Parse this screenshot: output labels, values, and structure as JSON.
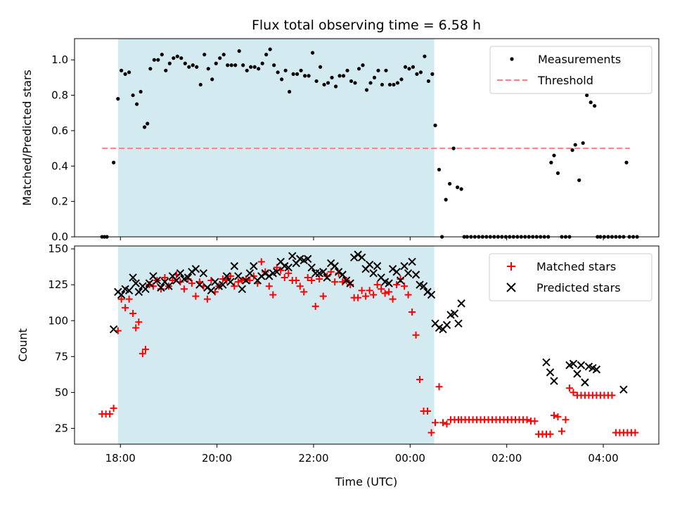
{
  "chart_data": {
    "title": "Flux total observing time = 6.58 h",
    "xlabel": "Time (UTC)",
    "x_unit": "hours since 18:00 UTC on the first night",
    "xlim": [
      -0.95,
      11.15
    ],
    "xticks": [
      {
        "value": 0,
        "label": "18:00"
      },
      {
        "value": 2,
        "label": "20:00"
      },
      {
        "value": 4,
        "label": "22:00"
      },
      {
        "value": 6,
        "label": "00:00"
      },
      {
        "value": 8,
        "label": "02:00"
      },
      {
        "value": 10,
        "label": "04:00"
      }
    ],
    "shaded_interval": [
      -0.05,
      6.5
    ],
    "shaded_color": "#d3eaf1",
    "panels": [
      {
        "id": "ratio",
        "type": "scatter",
        "ylabel": "Matched/Predicted stars",
        "ylim": [
          0,
          1.12
        ],
        "yticks": [
          "0.0",
          "0.2",
          "0.4",
          "0.6",
          "0.8",
          "1.0"
        ],
        "legend_position": "upper right",
        "threshold": {
          "name": "Threshold",
          "value": 0.5,
          "x_range": [
            -0.38,
            10.55
          ],
          "color": "#ff7f7f"
        },
        "series": [
          {
            "name": "Measurements",
            "color": "#000000",
            "marker": "dot",
            "x": [
              -0.38,
              -0.33,
              -0.28,
              -0.14,
              -0.05,
              0.02,
              0.1,
              0.18,
              0.26,
              0.34,
              0.42,
              0.5,
              0.56,
              0.62,
              0.7,
              0.78,
              0.86,
              0.94,
              1.02,
              1.1,
              1.18,
              1.26,
              1.34,
              1.42,
              1.5,
              1.58,
              1.66,
              1.74,
              1.82,
              1.9,
              1.98,
              2.06,
              2.14,
              2.22,
              2.3,
              2.38,
              2.46,
              2.54,
              2.62,
              2.7,
              2.78,
              2.86,
              2.94,
              3.02,
              3.1,
              3.18,
              3.26,
              3.34,
              3.42,
              3.5,
              3.58,
              3.66,
              3.74,
              3.82,
              3.9,
              3.98,
              4.06,
              4.14,
              4.22,
              4.3,
              4.38,
              4.46,
              4.54,
              4.62,
              4.7,
              4.78,
              4.86,
              4.94,
              5.02,
              5.1,
              5.18,
              5.26,
              5.34,
              5.42,
              5.5,
              5.58,
              5.66,
              5.74,
              5.82,
              5.9,
              5.98,
              6.06,
              6.14,
              6.22,
              6.3,
              6.38,
              6.46,
              6.52,
              6.6,
              6.66,
              6.74,
              6.82,
              6.9,
              6.98,
              7.06,
              7.12,
              7.18,
              7.26,
              7.34,
              7.42,
              7.5,
              7.58,
              7.66,
              7.74,
              7.82,
              7.9,
              7.98,
              8.06,
              8.14,
              8.22,
              8.3,
              8.38,
              8.46,
              8.54,
              8.62,
              8.7,
              8.78,
              8.86,
              8.92,
              8.98,
              9.06,
              9.14,
              9.22,
              9.3,
              9.36,
              9.42,
              9.5,
              9.58,
              9.66,
              9.74,
              9.82,
              9.88,
              9.94,
              10.02,
              10.1,
              10.18,
              10.26,
              10.34,
              10.42,
              10.48,
              10.54,
              10.62,
              10.7
            ],
            "y": [
              0.0,
              0.0,
              0.0,
              0.42,
              0.78,
              0.94,
              0.92,
              0.93,
              0.8,
              0.75,
              0.82,
              0.62,
              0.64,
              0.95,
              1.0,
              1.0,
              1.03,
              0.94,
              0.98,
              1.01,
              1.02,
              1.01,
              0.98,
              0.96,
              0.97,
              0.96,
              0.86,
              1.03,
              0.95,
              0.89,
              0.98,
              1.01,
              1.03,
              0.97,
              0.97,
              0.97,
              1.05,
              0.97,
              0.94,
              0.96,
              0.96,
              0.95,
              0.98,
              1.03,
              1.06,
              0.97,
              0.93,
              0.89,
              0.94,
              0.82,
              0.92,
              0.92,
              0.94,
              0.91,
              0.91,
              1.04,
              0.88,
              0.96,
              0.86,
              0.87,
              0.9,
              0.85,
              0.91,
              0.91,
              0.94,
              0.88,
              0.87,
              0.95,
              0.97,
              0.83,
              0.87,
              0.9,
              0.94,
              0.86,
              0.94,
              0.86,
              0.86,
              0.87,
              0.89,
              0.96,
              0.95,
              0.96,
              0.92,
              0.93,
              1.02,
              0.88,
              0.92,
              0.63,
              0.38,
              0.0,
              0.21,
              0.3,
              0.5,
              0.28,
              0.27,
              0.0,
              0.0,
              0.0,
              0.0,
              0.0,
              0.0,
              0.0,
              0.0,
              0.0,
              0.0,
              0.0,
              0.0,
              0.0,
              0.0,
              0.0,
              0.0,
              0.0,
              0.0,
              0.0,
              0.0,
              0.0,
              0.0,
              0.0,
              0.42,
              0.46,
              0.36,
              0.0,
              0.0,
              0.0,
              0.49,
              0.52,
              0.32,
              0.53,
              0.8,
              0.76,
              0.74,
              0.0,
              0.0,
              0.0,
              0.0,
              0.0,
              0.0,
              0.0,
              0.0,
              0.42,
              0.0,
              0.0,
              0.0
            ]
          }
        ]
      },
      {
        "id": "counts",
        "type": "scatter",
        "ylabel": "Count",
        "ylim": [
          14,
          152
        ],
        "yticks": [
          "25",
          "50",
          "75",
          "100",
          "125",
          "150"
        ],
        "legend_position": "upper right",
        "series": [
          {
            "name": "Matched stars",
            "color": "#ff0000",
            "marker": "plus",
            "x": [
              -0.38,
              -0.3,
              -0.22,
              -0.14,
              -0.05,
              0.02,
              0.1,
              0.18,
              0.26,
              0.32,
              0.38,
              0.46,
              0.52,
              0.6,
              0.68,
              0.76,
              0.84,
              0.92,
              1.0,
              1.08,
              1.16,
              1.24,
              1.32,
              1.4,
              1.48,
              1.56,
              1.64,
              1.72,
              1.8,
              1.88,
              1.96,
              2.04,
              2.12,
              2.2,
              2.28,
              2.36,
              2.44,
              2.52,
              2.6,
              2.68,
              2.76,
              2.84,
              2.92,
              3.0,
              3.08,
              3.16,
              3.24,
              3.32,
              3.4,
              3.48,
              3.56,
              3.64,
              3.72,
              3.8,
              3.88,
              3.96,
              4.04,
              4.12,
              4.2,
              4.28,
              4.36,
              4.44,
              4.52,
              4.6,
              4.68,
              4.76,
              4.84,
              4.92,
              5.0,
              5.08,
              5.16,
              5.24,
              5.32,
              5.4,
              5.48,
              5.56,
              5.64,
              5.72,
              5.8,
              5.88,
              5.96,
              6.04,
              6.12,
              6.2,
              6.28,
              6.36,
              6.44,
              6.52,
              6.6,
              6.68,
              6.76,
              6.84,
              6.92,
              7.0,
              7.06,
              7.14,
              7.22,
              7.3,
              7.38,
              7.46,
              7.54,
              7.62,
              7.7,
              7.78,
              7.86,
              7.94,
              8.02,
              8.1,
              8.18,
              8.26,
              8.34,
              8.42,
              8.5,
              8.58,
              8.66,
              8.74,
              8.82,
              8.9,
              8.98,
              9.06,
              9.14,
              9.22,
              9.3,
              9.38,
              9.46,
              9.54,
              9.62,
              9.7,
              9.78,
              9.86,
              9.94,
              10.02,
              10.1,
              10.18,
              10.26,
              10.34,
              10.42,
              10.5,
              10.58,
              10.66
            ],
            "y": [
              35,
              35,
              35,
              39,
              93,
              115,
              109,
              115,
              105,
              95,
              99,
              77,
              80,
              125,
              124,
              128,
              122,
              130,
              124,
              128,
              132,
              127,
              122,
              129,
              126,
              117,
              127,
              124,
              115,
              128,
              120,
              124,
              129,
              128,
              131,
              124,
              127,
              128,
              129,
              128,
              131,
              126,
              141,
              134,
              124,
              118,
              137,
              135,
              130,
              133,
              128,
              128,
              124,
              120,
              130,
              128,
              110,
              129,
              117,
              131,
              134,
              127,
              133,
              127,
              128,
              125,
              116,
              116,
              121,
              117,
              121,
              118,
              125,
              122,
              119,
              120,
              115,
              125,
              129,
              124,
              118,
              106,
              90,
              59,
              37,
              37,
              22,
              29,
              54,
              29,
              28,
              31,
              31,
              31,
              31,
              31,
              31,
              31,
              31,
              31,
              31,
              31,
              31,
              31,
              31,
              31,
              31,
              31,
              31,
              31,
              31,
              31,
              30,
              30,
              21,
              21,
              21,
              21,
              34,
              33,
              23,
              31,
              53,
              50,
              48,
              48,
              48,
              48,
              48,
              48,
              48,
              48,
              48,
              48,
              22,
              22,
              22,
              22,
              22,
              22
            ]
          },
          {
            "name": "Predicted stars",
            "color": "#000000",
            "marker": "x",
            "x": [
              -0.14,
              -0.05,
              0.02,
              0.1,
              0.18,
              0.26,
              0.32,
              0.38,
              0.46,
              0.52,
              0.6,
              0.68,
              0.76,
              0.84,
              0.92,
              1.0,
              1.08,
              1.16,
              1.24,
              1.32,
              1.4,
              1.48,
              1.56,
              1.64,
              1.72,
              1.8,
              1.88,
              1.96,
              2.04,
              2.12,
              2.2,
              2.28,
              2.36,
              2.44,
              2.52,
              2.6,
              2.68,
              2.76,
              2.84,
              2.92,
              3.0,
              3.08,
              3.16,
              3.24,
              3.32,
              3.4,
              3.48,
              3.56,
              3.64,
              3.72,
              3.8,
              3.88,
              3.96,
              4.04,
              4.12,
              4.2,
              4.28,
              4.36,
              4.44,
              4.52,
              4.6,
              4.68,
              4.76,
              4.84,
              4.92,
              5.0,
              5.08,
              5.16,
              5.24,
              5.32,
              5.4,
              5.48,
              5.56,
              5.64,
              5.72,
              5.8,
              5.88,
              5.96,
              6.04,
              6.12,
              6.2,
              6.28,
              6.36,
              6.44,
              6.52,
              6.6,
              6.68,
              6.76,
              6.84,
              6.92,
              7.0,
              7.06,
              8.82,
              8.9,
              8.98,
              9.3,
              9.38,
              9.46,
              9.54,
              9.62,
              9.7,
              9.78,
              9.86,
              10.42
            ],
            "y": [
              94,
              120,
              118,
              122,
              121,
              130,
              126,
              120,
              124,
              122,
              126,
              131,
              128,
              123,
              127,
              124,
              131,
              128,
              133,
              129,
              130,
              134,
              136,
              125,
              133,
              123,
              121,
              127,
              124,
              125,
              131,
              127,
              138,
              131,
              122,
              128,
              133,
              138,
              128,
              131,
              133,
              131,
              133,
              134,
              141,
              138,
              137,
              145,
              140,
              143,
              142,
              143,
              137,
              133,
              133,
              134,
              130,
              140,
              138,
              134,
              132,
              128,
              126,
              144,
              146,
              144,
              136,
              139,
              133,
              138,
              130,
              127,
              126,
              136,
              134,
              128,
              138,
              133,
              141,
              132,
              125,
              124,
              120,
              118,
              98,
              95,
              94,
              97,
              104,
              105,
              98,
              112,
              71,
              64,
              58,
              69,
              70,
              63,
              69,
              57,
              68,
              67,
              66,
              52
            ]
          }
        ]
      }
    ]
  }
}
